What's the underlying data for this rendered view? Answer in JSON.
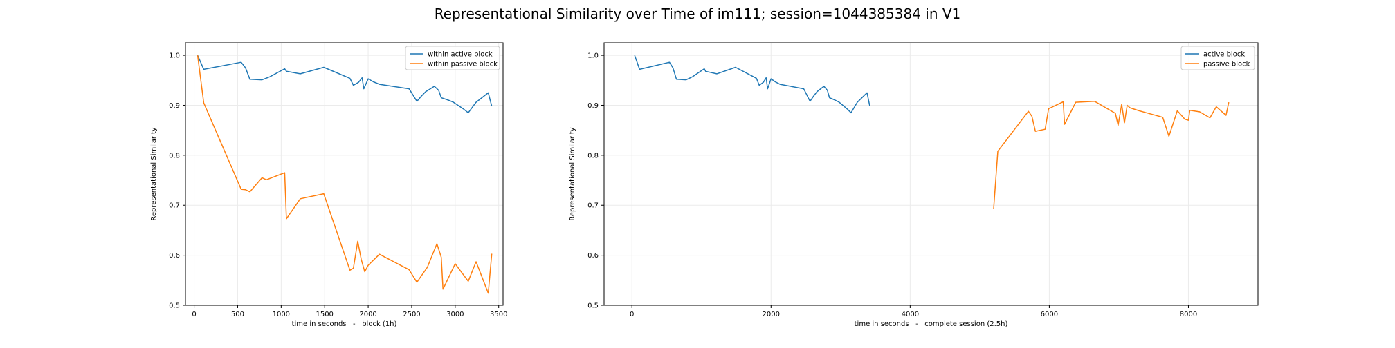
{
  "suptitle": "Representational Similarity over Time of im111; session=1044385384 in V1",
  "colors": {
    "blue": "#1f77b4",
    "orange": "#ff7f0e",
    "grid": "#ebebeb",
    "axis": "#000000",
    "legend_border": "#cccccc"
  },
  "chart_data": [
    {
      "type": "line",
      "title": "",
      "xlabel": "time in seconds   -   block (1h)",
      "ylabel": "Representational Similarity",
      "xlim": [
        -100,
        3550
      ],
      "ylim": [
        0.5,
        1.025
      ],
      "xticks": [
        0,
        500,
        1000,
        1500,
        2000,
        2500,
        3000,
        3500
      ],
      "xtick_labels": [
        "0",
        "500",
        "1000",
        "1500",
        "2000",
        "2500",
        "3000",
        "3500"
      ],
      "yticks": [
        0.5,
        0.6,
        0.7,
        0.8,
        0.9,
        1.0
      ],
      "ytick_labels": [
        "0.5",
        "0.6",
        "0.7",
        "0.8",
        "0.9",
        "1.0"
      ],
      "grid": true,
      "legend": "top-right",
      "series": [
        {
          "name": "within active block",
          "color": "#1f77b4",
          "x": [
            40,
            110,
            540,
            590,
            640,
            780,
            870,
            1040,
            1060,
            1220,
            1490,
            1790,
            1830,
            1890,
            1930,
            1950,
            2000,
            2060,
            2130,
            2470,
            2560,
            2610,
            2660,
            2760,
            2810,
            2840,
            2910,
            2980,
            3100,
            3150,
            3240,
            3380,
            3420
          ],
          "y": [
            1.0,
            0.972,
            0.986,
            0.975,
            0.952,
            0.951,
            0.957,
            0.973,
            0.968,
            0.963,
            0.976,
            0.954,
            0.94,
            0.946,
            0.955,
            0.933,
            0.953,
            0.947,
            0.942,
            0.933,
            0.908,
            0.918,
            0.927,
            0.938,
            0.93,
            0.915,
            0.911,
            0.906,
            0.892,
            0.885,
            0.906,
            0.925,
            0.898
          ]
        },
        {
          "name": "within passive block",
          "color": "#ff7f0e",
          "x": [
            40,
            110,
            540,
            590,
            640,
            780,
            830,
            1040,
            1060,
            1220,
            1490,
            1790,
            1830,
            1880,
            1920,
            1960,
            2000,
            2130,
            2470,
            2560,
            2680,
            2790,
            2840,
            2860,
            3000,
            3150,
            3240,
            3380,
            3420
          ],
          "y": [
            1.0,
            0.905,
            0.732,
            0.731,
            0.727,
            0.755,
            0.751,
            0.765,
            0.673,
            0.713,
            0.723,
            0.57,
            0.574,
            0.628,
            0.592,
            0.567,
            0.58,
            0.602,
            0.571,
            0.546,
            0.576,
            0.623,
            0.596,
            0.532,
            0.583,
            0.548,
            0.587,
            0.524,
            0.603
          ]
        }
      ]
    },
    {
      "type": "line",
      "title": "",
      "xlabel": "time in seconds   -   complete session (2.5h)",
      "ylabel": "Representational Similarity",
      "xlim": [
        -400,
        9000
      ],
      "ylim": [
        0.5,
        1.025
      ],
      "xticks": [
        0,
        2000,
        4000,
        6000,
        8000
      ],
      "xtick_labels": [
        "0",
        "2000",
        "4000",
        "6000",
        "8000"
      ],
      "yticks": [
        0.5,
        0.6,
        0.7,
        0.8,
        0.9,
        1.0
      ],
      "ytick_labels": [
        "0.5",
        "0.6",
        "0.7",
        "0.8",
        "0.9",
        "1.0"
      ],
      "grid": true,
      "legend": "top-right",
      "series": [
        {
          "name": "active block",
          "color": "#1f77b4",
          "x": [
            40,
            110,
            540,
            590,
            640,
            780,
            870,
            1040,
            1060,
            1220,
            1490,
            1790,
            1830,
            1890,
            1930,
            1950,
            2000,
            2060,
            2130,
            2470,
            2560,
            2610,
            2660,
            2760,
            2810,
            2840,
            2910,
            2980,
            3100,
            3150,
            3240,
            3380,
            3420
          ],
          "y": [
            1.0,
            0.972,
            0.986,
            0.975,
            0.952,
            0.951,
            0.957,
            0.973,
            0.968,
            0.963,
            0.976,
            0.954,
            0.94,
            0.946,
            0.955,
            0.933,
            0.953,
            0.947,
            0.942,
            0.933,
            0.908,
            0.918,
            0.927,
            0.938,
            0.93,
            0.915,
            0.911,
            0.906,
            0.892,
            0.885,
            0.906,
            0.925,
            0.898
          ]
        },
        {
          "name": "passive block",
          "color": "#ff7f0e",
          "x": [
            5200,
            5260,
            5700,
            5750,
            5800,
            5940,
            5990,
            6200,
            6220,
            6380,
            6650,
            6950,
            6990,
            7040,
            7080,
            7120,
            7160,
            7290,
            7630,
            7720,
            7840,
            7950,
            8000,
            8020,
            8160,
            8310,
            8400,
            8540,
            8580
          ],
          "y": [
            0.693,
            0.808,
            0.888,
            0.878,
            0.848,
            0.852,
            0.893,
            0.907,
            0.862,
            0.906,
            0.908,
            0.884,
            0.86,
            0.902,
            0.865,
            0.9,
            0.895,
            0.889,
            0.876,
            0.838,
            0.889,
            0.872,
            0.87,
            0.89,
            0.887,
            0.875,
            0.897,
            0.88,
            0.906
          ]
        }
      ]
    }
  ]
}
